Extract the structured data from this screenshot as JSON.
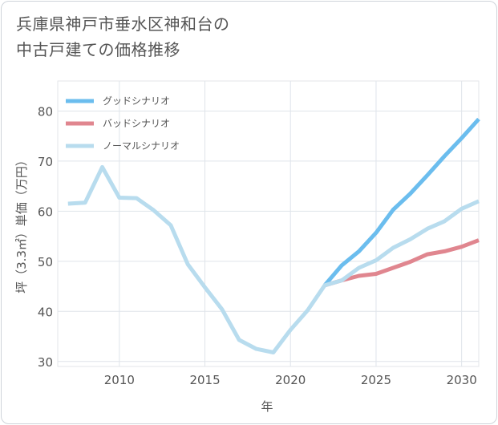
{
  "title_lines": [
    "兵庫県神戸市垂水区神和台の",
    "中古戸建ての価格推移"
  ],
  "chart_data": {
    "type": "line",
    "xlabel": "年",
    "ylabel": "坪（3.3㎡）単価（万円）",
    "xlim": [
      2006.4,
      2031
    ],
    "ylim": [
      29,
      86
    ],
    "xticks": [
      2010,
      2015,
      2020,
      2025,
      2030
    ],
    "yticks": [
      30,
      40,
      50,
      60,
      70,
      80
    ],
    "grid": true,
    "legend_position": "top-left",
    "series": [
      {
        "name": "グッドシナリオ",
        "color": "#6bbdee",
        "x": [
          2022,
          2023,
          2024,
          2025,
          2026,
          2027,
          2028,
          2029,
          2030,
          2031
        ],
        "y": [
          45.2,
          49.2,
          52.0,
          55.7,
          60.3,
          63.5,
          67.2,
          71.0,
          74.6,
          78.4
        ]
      },
      {
        "name": "バッドシナリオ",
        "color": "#e0868f",
        "x": [
          2022,
          2023,
          2024,
          2025,
          2026,
          2027,
          2028,
          2029,
          2030,
          2031
        ],
        "y": [
          45.2,
          46.2,
          47.1,
          47.5,
          48.7,
          49.9,
          51.4,
          52.0,
          52.9,
          54.2
        ]
      },
      {
        "name": "ノーマルシナリオ",
        "color": "#b8dcee",
        "x": [
          2007,
          2008,
          2009,
          2010,
          2011,
          2012,
          2013,
          2014,
          2015,
          2016,
          2017,
          2018,
          2019,
          2020,
          2021,
          2022,
          2023,
          2024,
          2025,
          2026,
          2027,
          2028,
          2029,
          2030,
          2031
        ],
        "y": [
          61.5,
          61.7,
          68.8,
          62.7,
          62.6,
          60.2,
          57.2,
          49.4,
          44.8,
          40.4,
          34.3,
          32.5,
          31.8,
          36.3,
          40.2,
          45.2,
          46.2,
          48.7,
          50.2,
          52.7,
          54.4,
          56.5,
          58.0,
          60.5,
          62.0
        ]
      }
    ]
  }
}
